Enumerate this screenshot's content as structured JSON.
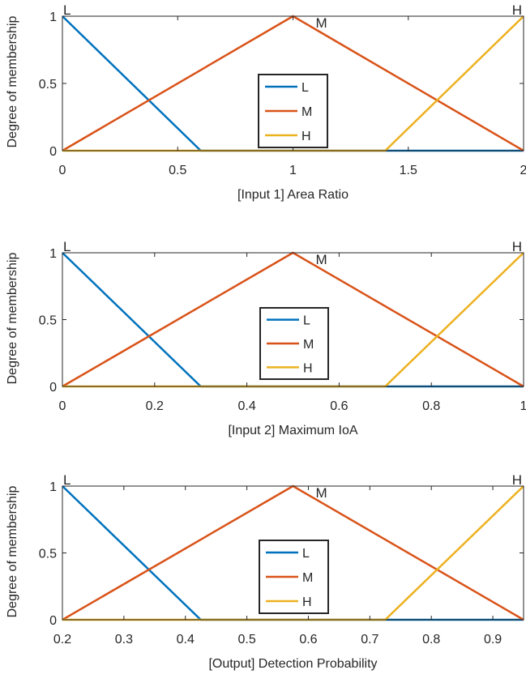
{
  "chart_data": [
    {
      "type": "line",
      "xlabel": "[Input 1] Area Ratio",
      "ylabel": "Degree of membership",
      "xlim": [
        0,
        2
      ],
      "ylim": [
        0,
        1
      ],
      "xticks": [
        0,
        0.5,
        1,
        1.5,
        2
      ],
      "xtick_labels": [
        "0",
        "0.5",
        "1",
        "1.5",
        "2"
      ],
      "yticks": [
        0,
        0.5,
        1
      ],
      "ytick_labels": [
        "0",
        "0.5",
        "1"
      ],
      "grid": false,
      "legend_position": "center",
      "series": [
        {
          "name": "L",
          "color": "#0072BD",
          "x": [
            0,
            0.6,
            2
          ],
          "y": [
            1,
            0,
            0
          ]
        },
        {
          "name": "M",
          "color": "#D95319",
          "x": [
            0,
            1,
            2
          ],
          "y": [
            0,
            1,
            0
          ]
        },
        {
          "name": "H",
          "color": "#EDB120",
          "x": [
            0,
            1.4,
            2
          ],
          "y": [
            0,
            0,
            1
          ]
        }
      ],
      "annotations": [
        {
          "text": "L",
          "x": 0,
          "y": 1
        },
        {
          "text": "M",
          "x": 1,
          "y": 1
        },
        {
          "text": "H",
          "x": 2,
          "y": 1
        }
      ]
    },
    {
      "type": "line",
      "xlabel": "[Input 2] Maximum IoA",
      "ylabel": "Degree of membership",
      "xlim": [
        0,
        1
      ],
      "ylim": [
        0,
        1
      ],
      "xticks": [
        0,
        0.2,
        0.4,
        0.6,
        0.8,
        1
      ],
      "xtick_labels": [
        "0",
        "0.2",
        "0.4",
        "0.6",
        "0.8",
        "1"
      ],
      "yticks": [
        0,
        0.5,
        1
      ],
      "ytick_labels": [
        "0",
        "0.5",
        "1"
      ],
      "grid": false,
      "legend_position": "center",
      "series": [
        {
          "name": "L",
          "color": "#0072BD",
          "x": [
            0,
            0.3,
            1
          ],
          "y": [
            1,
            0,
            0
          ]
        },
        {
          "name": "M",
          "color": "#D95319",
          "x": [
            0,
            0.5,
            1
          ],
          "y": [
            0,
            1,
            0
          ]
        },
        {
          "name": "H",
          "color": "#EDB120",
          "x": [
            0,
            0.7,
            1
          ],
          "y": [
            0,
            0,
            1
          ]
        }
      ],
      "annotations": [
        {
          "text": "L",
          "x": 0,
          "y": 1
        },
        {
          "text": "M",
          "x": 0.5,
          "y": 1
        },
        {
          "text": "H",
          "x": 1,
          "y": 1
        }
      ]
    },
    {
      "type": "line",
      "xlabel": "[Output] Detection Probability",
      "ylabel": "Degree of membership",
      "xlim": [
        0.2,
        0.95
      ],
      "ylim": [
        0,
        1
      ],
      "xticks": [
        0.2,
        0.3,
        0.4,
        0.5,
        0.6,
        0.7,
        0.8,
        0.9
      ],
      "xtick_labels": [
        "0.2",
        "0.3",
        "0.4",
        "0.5",
        "0.6",
        "0.7",
        "0.8",
        "0.9"
      ],
      "yticks": [
        0,
        0.5,
        1
      ],
      "ytick_labels": [
        "0",
        "0.5",
        "1"
      ],
      "grid": false,
      "legend_position": "center",
      "series": [
        {
          "name": "L",
          "color": "#0072BD",
          "x": [
            0.2,
            0.425,
            0.95
          ],
          "y": [
            1,
            0,
            0
          ]
        },
        {
          "name": "M",
          "color": "#D95319",
          "x": [
            0.2,
            0.575,
            0.95
          ],
          "y": [
            0,
            1,
            0
          ]
        },
        {
          "name": "H",
          "color": "#EDB120",
          "x": [
            0.2,
            0.725,
            0.95
          ],
          "y": [
            0,
            0,
            1
          ]
        }
      ],
      "annotations": [
        {
          "text": "L",
          "x": 0.2,
          "y": 1
        },
        {
          "text": "M",
          "x": 0.575,
          "y": 1
        },
        {
          "text": "H",
          "x": 0.95,
          "y": 1
        }
      ]
    }
  ]
}
